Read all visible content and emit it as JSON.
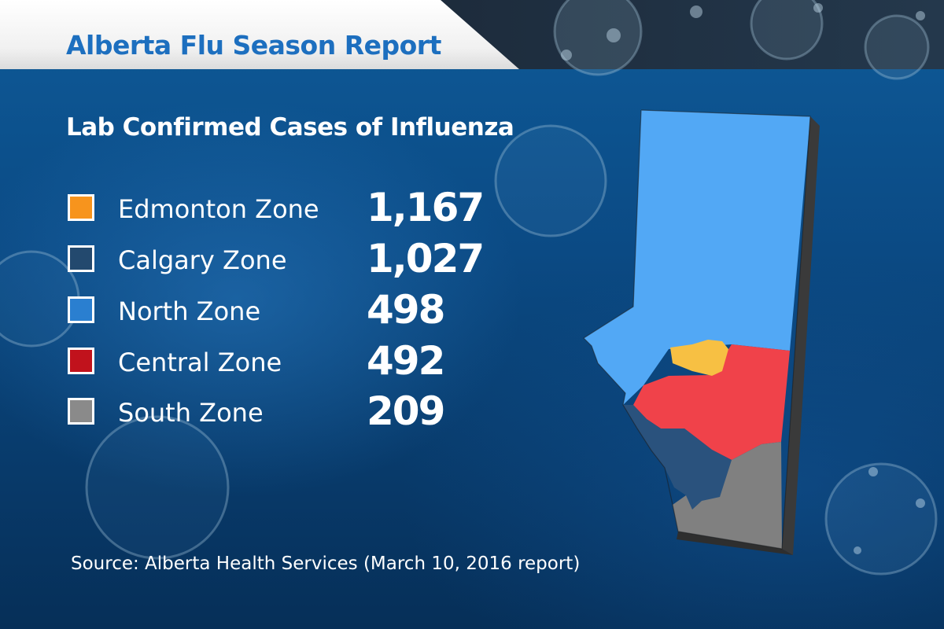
{
  "header": {
    "title": "Alberta Flu Season Report"
  },
  "main": {
    "subtitle": "Lab Confirmed Cases of Influenza",
    "legend": [
      {
        "label": "Edmonton Zone",
        "value": "1,167",
        "color": "#f7941d"
      },
      {
        "label": "Calgary Zone",
        "value": "1,027",
        "color": "#23496e"
      },
      {
        "label": "North Zone",
        "value": "498",
        "color": "#2a7fd0"
      },
      {
        "label": "Central Zone",
        "value": "492",
        "color": "#c1121c"
      },
      {
        "label": "South Zone",
        "value": "209",
        "color": "#8a8a8a"
      }
    ],
    "source": "Source: Alberta Health Services (March 10, 2016 report)"
  },
  "map": {
    "colors": {
      "north": "#52a8f5",
      "edmonton": "#f7c043",
      "central": "#f0424a",
      "calgary": "#2a527d",
      "south": "#808080",
      "side": "#3a3a3a"
    }
  }
}
